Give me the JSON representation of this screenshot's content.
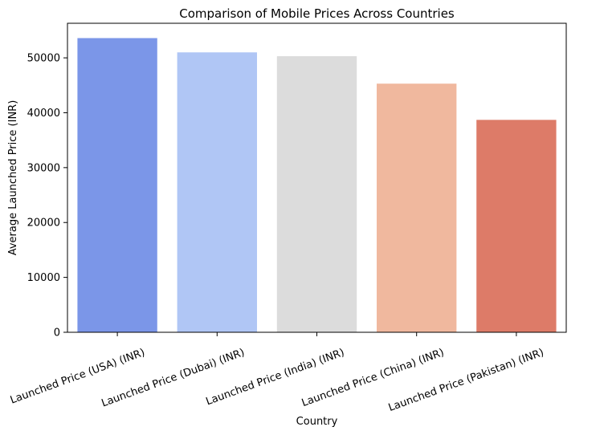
{
  "chart_data": {
    "type": "bar",
    "title": "Comparison of Mobile Prices Across Countries",
    "xlabel": "Country",
    "ylabel": "Average Launched Price (INR)",
    "categories": [
      "Launched Price (USA) (INR)",
      "Launched Price (Dubai) (INR)",
      "Launched Price (India) (INR)",
      "Launched Price (China) (INR)",
      "Launched Price (Pakistan) (INR)"
    ],
    "values": [
      53600,
      51000,
      50300,
      45300,
      38700
    ],
    "colors": [
      "#7b96e8",
      "#b0c6f5",
      "#dcdcdc",
      "#f0b89e",
      "#dd7b68"
    ],
    "ylim": [
      0,
      56300
    ],
    "yticks": [
      0,
      10000,
      20000,
      30000,
      40000,
      50000
    ],
    "grid": false,
    "legend": "none"
  }
}
